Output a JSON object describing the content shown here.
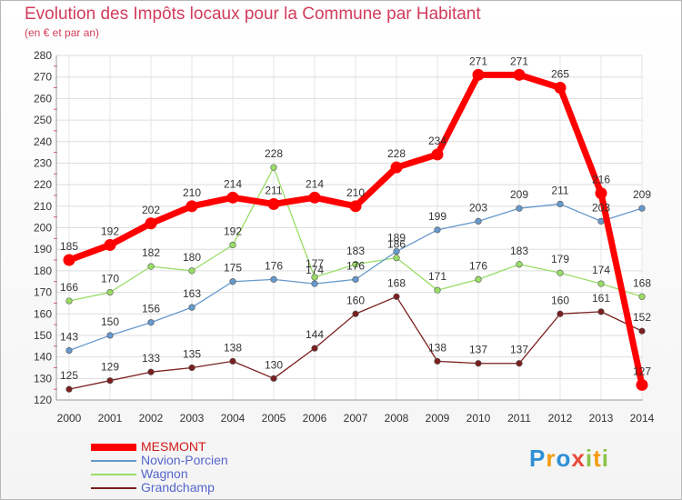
{
  "header": {
    "title": "Evolution des Impôts locaux pour la Commune par Habitant",
    "subtitle": "(en € et par an)"
  },
  "logo": {
    "letters": [
      "P",
      "r",
      "o",
      "x",
      "i",
      "t",
      "i"
    ],
    "colors": [
      "#2e8fd6",
      "#f39c12",
      "#2e8fd6",
      "#e74c3c",
      "#8bc34a",
      "#f39c12",
      "#8bc34a"
    ]
  },
  "chart_data": {
    "type": "line",
    "title": "Evolution des Impôts locaux pour la Commune par Habitant",
    "subtitle": "(en € et par an)",
    "x": [
      "2000",
      "2001",
      "2002",
      "2003",
      "2004",
      "2005",
      "2006",
      "2007",
      "2008",
      "2009",
      "2010",
      "2011",
      "2012",
      "2013",
      "2014"
    ],
    "y_ticks": [
      "120",
      "130",
      "140",
      "150",
      "160",
      "170",
      "180",
      "190",
      "200",
      "210",
      "220",
      "230",
      "240",
      "250",
      "260",
      "270",
      "280"
    ],
    "ylim": [
      120,
      280
    ],
    "grid": true,
    "legend_position": "bottom-left",
    "series": [
      {
        "name": "MESMONT",
        "color": "#ff0000",
        "values": [
          185,
          192,
          202,
          210,
          214,
          211,
          214,
          210,
          228,
          234,
          271,
          271,
          265,
          216,
          127
        ],
        "labels": [
          "185",
          "192",
          "202",
          "210",
          "214",
          "211",
          "214",
          "210",
          "228",
          "234",
          "271",
          "271",
          "265",
          "216",
          "127"
        ]
      },
      {
        "name": "Novion-Porcien",
        "color": "#6699cc",
        "values": [
          143,
          150,
          156,
          163,
          175,
          176,
          174,
          176,
          189,
          199,
          203,
          209,
          211,
          203,
          209
        ],
        "labels": [
          "143",
          "150",
          "156",
          "163",
          "175",
          "176",
          "174",
          "176",
          "189",
          "199",
          "203",
          "209",
          "211",
          "203",
          "209"
        ]
      },
      {
        "name": "Wagnon",
        "color": "#99dd66",
        "values": [
          166,
          170,
          182,
          180,
          192,
          228,
          177,
          183,
          186,
          171,
          176,
          183,
          179,
          174,
          168
        ],
        "labels": [
          "166",
          "170",
          "182",
          "180",
          "192",
          "228",
          "177",
          "183",
          "186",
          "171",
          "176",
          "183",
          "179",
          "174",
          "168"
        ]
      },
      {
        "name": "Grandchamp",
        "color": "#7a1f1f",
        "values": [
          125,
          129,
          133,
          135,
          138,
          130,
          144,
          160,
          168,
          138,
          137,
          137,
          160,
          161,
          152
        ],
        "labels": [
          "125",
          "129",
          "133",
          "135",
          "138",
          "130",
          "144",
          "160",
          "168",
          "138",
          "137",
          "137",
          "160",
          "161",
          "152"
        ]
      }
    ]
  }
}
